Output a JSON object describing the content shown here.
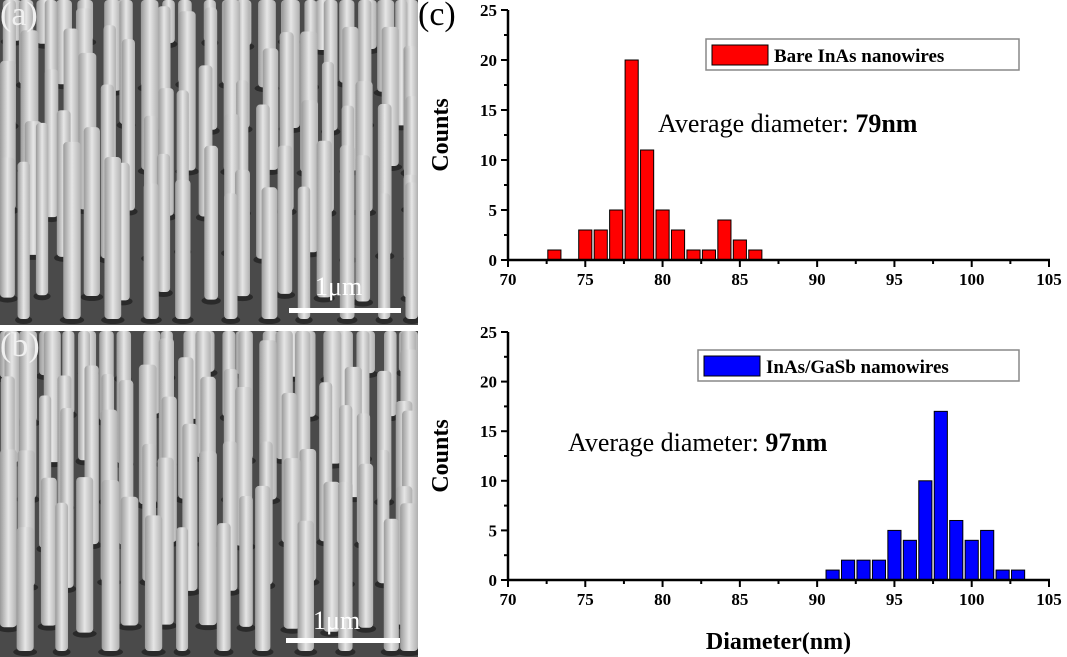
{
  "panels": {
    "a": {
      "label": "(a)",
      "scale_label": "1μm"
    },
    "b": {
      "label": "(b)",
      "scale_label": "1μm"
    },
    "c": {
      "label": "(c)"
    }
  },
  "chart_data": [
    {
      "type": "bar",
      "legend": "Bare InAs nanowires",
      "legend_placement": "top-right",
      "annotation_prefix": "Average diameter: ",
      "annotation_value": "79nm",
      "color": "#ff0000",
      "x": [
        73,
        75,
        76,
        77,
        78,
        79,
        80,
        81,
        82,
        83,
        84,
        85,
        86
      ],
      "values": [
        1,
        3,
        3,
        5,
        20,
        11,
        5,
        3,
        1,
        1,
        4,
        2,
        1
      ],
      "xlim": [
        70,
        105
      ],
      "ylim": [
        0,
        25
      ],
      "xticks": [
        "70",
        "75",
        "80",
        "85",
        "90",
        "95",
        "100",
        "105"
      ],
      "yticks": [
        "0",
        "5",
        "10",
        "15",
        "20",
        "25"
      ],
      "xlabel": "",
      "ylabel": "Counts"
    },
    {
      "type": "bar",
      "legend": "InAs/GaSb namowires",
      "legend_placement": "top-right",
      "annotation_prefix": "Average diameter: ",
      "annotation_value": "97nm",
      "color": "#0000ff",
      "x": [
        91,
        92,
        93,
        94,
        95,
        96,
        97,
        98,
        99,
        100,
        101,
        102,
        103
      ],
      "values": [
        1,
        2,
        2,
        2,
        5,
        4,
        10,
        17,
        6,
        4,
        5,
        1,
        1
      ],
      "xlim": [
        70,
        105
      ],
      "ylim": [
        0,
        25
      ],
      "xticks": [
        "70",
        "75",
        "80",
        "85",
        "90",
        "95",
        "100",
        "105"
      ],
      "yticks": [
        "0",
        "5",
        "10",
        "15",
        "20",
        "25"
      ],
      "xlabel": "Diameter(nm)",
      "ylabel": "Counts"
    }
  ]
}
